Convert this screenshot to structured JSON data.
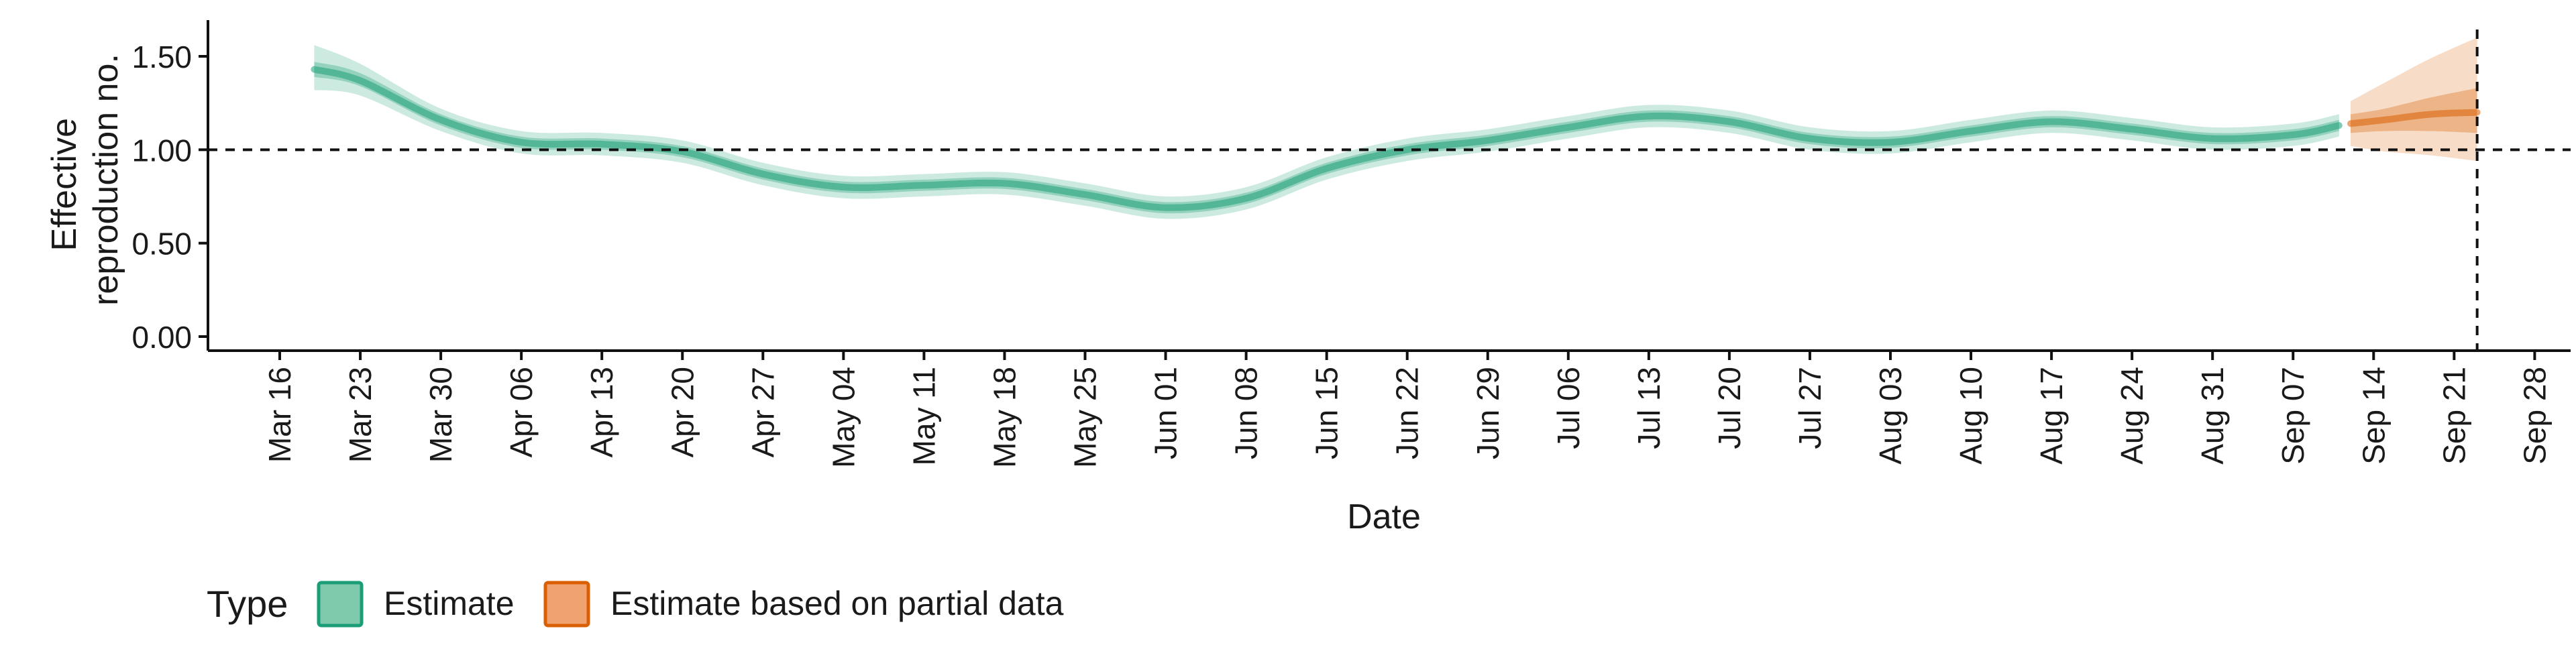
{
  "chart_data": {
    "type": "line",
    "title": "",
    "xlabel": "Date",
    "ylabel": [
      "Effective",
      "reproduction no."
    ],
    "x_ticks": [
      "Mar 16",
      "Mar 23",
      "Mar 30",
      "Apr 06",
      "Apr 13",
      "Apr 20",
      "Apr 27",
      "May 04",
      "May 11",
      "May 18",
      "May 25",
      "Jun 01",
      "Jun 08",
      "Jun 15",
      "Jun 22",
      "Jun 29",
      "Jul 06",
      "Jul 13",
      "Jul 20",
      "Jul 27",
      "Aug 03",
      "Aug 10",
      "Aug 17",
      "Aug 24",
      "Aug 31",
      "Sep 07",
      "Sep 14",
      "Sep 21",
      "Sep 28"
    ],
    "y_ticks": [
      "0.00",
      "0.50",
      "1.00",
      "1.50"
    ],
    "ylim": [
      0,
      1.6
    ],
    "reference_line_y": 1.0,
    "cutoff_date": "Sep 23",
    "legend": {
      "title": "Type",
      "position": "bottom",
      "items": [
        {
          "label": "Estimate",
          "fill": "#7fc9ad",
          "stroke": "#1b9e77"
        },
        {
          "label": "Estimate based on partial data",
          "fill": "#f0a270",
          "stroke": "#d95f02"
        }
      ]
    },
    "series": [
      {
        "name": "Estimate",
        "color": "#1b9e77",
        "points": [
          {
            "date": "Mar 19",
            "median": 1.43,
            "lo50": 1.39,
            "hi50": 1.47,
            "lo90": 1.32,
            "hi90": 1.56
          },
          {
            "date": "Mar 23",
            "median": 1.37,
            "lo50": 1.34,
            "hi50": 1.41,
            "lo90": 1.29,
            "hi90": 1.46
          },
          {
            "date": "Mar 30",
            "median": 1.16,
            "lo50": 1.13,
            "hi50": 1.19,
            "lo90": 1.1,
            "hi90": 1.22
          },
          {
            "date": "Apr 06",
            "median": 1.04,
            "lo50": 1.01,
            "hi50": 1.07,
            "lo90": 0.98,
            "hi90": 1.1
          },
          {
            "date": "Apr 13",
            "median": 1.03,
            "lo50": 1.0,
            "hi50": 1.06,
            "lo90": 0.97,
            "hi90": 1.09
          },
          {
            "date": "Apr 20",
            "median": 0.99,
            "lo50": 0.96,
            "hi50": 1.02,
            "lo90": 0.93,
            "hi90": 1.05
          },
          {
            "date": "Apr 27",
            "median": 0.87,
            "lo50": 0.84,
            "hi50": 0.9,
            "lo90": 0.81,
            "hi90": 0.93
          },
          {
            "date": "May 04",
            "median": 0.8,
            "lo50": 0.77,
            "hi50": 0.83,
            "lo90": 0.74,
            "hi90": 0.86
          },
          {
            "date": "May 11",
            "median": 0.81,
            "lo50": 0.78,
            "hi50": 0.84,
            "lo90": 0.75,
            "hi90": 0.87
          },
          {
            "date": "May 18",
            "median": 0.82,
            "lo50": 0.79,
            "hi50": 0.85,
            "lo90": 0.76,
            "hi90": 0.88
          },
          {
            "date": "May 25",
            "median": 0.76,
            "lo50": 0.73,
            "hi50": 0.79,
            "lo90": 0.7,
            "hi90": 0.82
          },
          {
            "date": "Jun 01",
            "median": 0.69,
            "lo50": 0.66,
            "hi50": 0.72,
            "lo90": 0.63,
            "hi90": 0.75
          },
          {
            "date": "Jun 08",
            "median": 0.74,
            "lo50": 0.71,
            "hi50": 0.77,
            "lo90": 0.68,
            "hi90": 0.8
          },
          {
            "date": "Jun 15",
            "median": 0.9,
            "lo50": 0.87,
            "hi50": 0.93,
            "lo90": 0.84,
            "hi90": 0.96
          },
          {
            "date": "Jun 22",
            "median": 1.0,
            "lo50": 0.97,
            "hi50": 1.03,
            "lo90": 0.94,
            "hi90": 1.06
          },
          {
            "date": "Jun 29",
            "median": 1.05,
            "lo50": 1.02,
            "hi50": 1.08,
            "lo90": 0.99,
            "hi90": 1.11
          },
          {
            "date": "Jul 06",
            "median": 1.12,
            "lo50": 1.09,
            "hi50": 1.15,
            "lo90": 1.06,
            "hi90": 1.18
          },
          {
            "date": "Jul 13",
            "median": 1.18,
            "lo50": 1.15,
            "hi50": 1.21,
            "lo90": 1.12,
            "hi90": 1.24
          },
          {
            "date": "Jul 20",
            "median": 1.15,
            "lo50": 1.12,
            "hi50": 1.18,
            "lo90": 1.09,
            "hi90": 1.21
          },
          {
            "date": "Jul 27",
            "median": 1.06,
            "lo50": 1.03,
            "hi50": 1.09,
            "lo90": 1.0,
            "hi90": 1.12
          },
          {
            "date": "Aug 03",
            "median": 1.04,
            "lo50": 1.01,
            "hi50": 1.07,
            "lo90": 0.98,
            "hi90": 1.1
          },
          {
            "date": "Aug 10",
            "median": 1.1,
            "lo50": 1.07,
            "hi50": 1.13,
            "lo90": 1.04,
            "hi90": 1.16
          },
          {
            "date": "Aug 17",
            "median": 1.15,
            "lo50": 1.12,
            "hi50": 1.18,
            "lo90": 1.09,
            "hi90": 1.21
          },
          {
            "date": "Aug 24",
            "median": 1.11,
            "lo50": 1.08,
            "hi50": 1.14,
            "lo90": 1.05,
            "hi90": 1.17
          },
          {
            "date": "Aug 31",
            "median": 1.06,
            "lo50": 1.03,
            "hi50": 1.09,
            "lo90": 1.0,
            "hi90": 1.12
          },
          {
            "date": "Sep 07",
            "median": 1.08,
            "lo50": 1.05,
            "hi50": 1.11,
            "lo90": 1.02,
            "hi90": 1.14
          },
          {
            "date": "Sep 11",
            "median": 1.13,
            "lo50": 1.1,
            "hi50": 1.16,
            "lo90": 1.07,
            "hi90": 1.19
          }
        ]
      },
      {
        "name": "Estimate based on partial data",
        "color": "#d95f02",
        "points": [
          {
            "date": "Sep 12",
            "median": 1.14,
            "lo50": 1.09,
            "hi50": 1.19,
            "lo90": 1.02,
            "hi90": 1.26
          },
          {
            "date": "Sep 15",
            "median": 1.16,
            "lo50": 1.1,
            "hi50": 1.22,
            "lo90": 0.99,
            "hi90": 1.36
          },
          {
            "date": "Sep 19",
            "median": 1.19,
            "lo50": 1.1,
            "hi50": 1.28,
            "lo90": 0.97,
            "hi90": 1.49
          },
          {
            "date": "Sep 23",
            "median": 1.2,
            "lo50": 1.09,
            "hi50": 1.33,
            "lo90": 0.94,
            "hi90": 1.6
          }
        ]
      }
    ]
  }
}
